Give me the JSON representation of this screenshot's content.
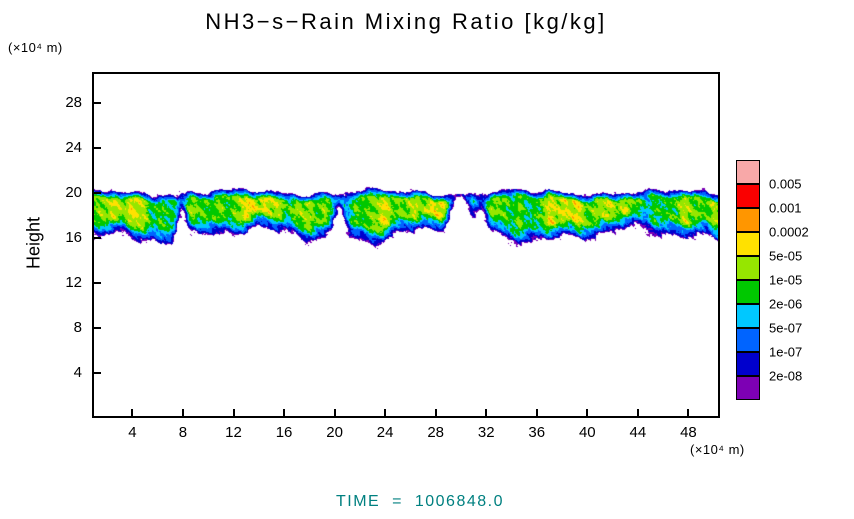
{
  "footer": {
    "time_label": "TIME  =  1006848.0"
  },
  "chart_data": {
    "type": "heatmap",
    "title": "NH3−s−Rain Mixing Ratio [kg/kg]",
    "ylabel": "Height",
    "y_axis_unit": "(×10⁴ m)",
    "x_axis_unit": "(×10⁴ m)",
    "x_ticks": [
      4,
      8,
      12,
      16,
      20,
      24,
      28,
      32,
      36,
      40,
      44,
      48
    ],
    "y_ticks": [
      4,
      8,
      12,
      16,
      20,
      24,
      28
    ],
    "xlim": [
      0.8,
      50.5
    ],
    "ylim": [
      0,
      30.75
    ],
    "grid": false,
    "legend_position": "right",
    "levels": [
      2e-08,
      1e-07,
      5e-07,
      2e-06,
      1e-05,
      5e-05,
      0.0002,
      0.001,
      0.005
    ],
    "level_labels_top_to_bottom": [
      "0.005",
      "0.001",
      "0.0002",
      "5e-05",
      "1e-05",
      "2e-06",
      "5e-07",
      "1e-07",
      "2e-08"
    ],
    "fill_colors_low_to_high": [
      "#7d00b4",
      "#0000cd",
      "#0064ff",
      "#00c8ff",
      "#00c800",
      "#96e600",
      "#ffe100",
      "#ff9600",
      "#fa0000",
      "#f8a8a8"
    ],
    "thresholds_log10": [
      -8.0,
      -7.7,
      -7.0,
      -6.3,
      -5.7,
      -5.0,
      -4.3,
      -3.7,
      -3.0,
      -2.3
    ],
    "band": {
      "description": "horizontal rain mixing-ratio band between heights ~15.5 and ~20.5 (x10^4 m), green/yellow-green cores ringed by cyan, blue, navy and purple fringes",
      "top_edge": {
        "base": 20.15,
        "waves": [
          [
            0.55,
            1.2,
            0.22
          ],
          [
            1.7,
            0.4,
            0.13
          ],
          [
            3.1,
            0.0,
            0.08
          ]
        ]
      },
      "bottom_edge": {
        "base": 16.05,
        "waves": [
          [
            0.42,
            2.1,
            0.5
          ],
          [
            1.1,
            4.2,
            0.32
          ],
          [
            2.3,
            1.0,
            0.22
          ]
        ]
      },
      "peak_log10": {
        "base": -4.9,
        "waves": [
          [
            0.5,
            0.7,
            0.45
          ],
          [
            1.3,
            2.6,
            0.35
          ],
          [
            2.9,
            1.3,
            0.25
          ],
          [
            5.3,
            0.2,
            0.18
          ]
        ],
        "clamp": [
          -6.25,
          -4.1
        ]
      },
      "floor_log10": -8.6,
      "edge_scale_top": 0.75,
      "edge_scale_bottom": 1.55,
      "shape_power": 0.8,
      "noise_waves": [
        [
          7.1,
          3.3,
          0.0,
          0.2
        ],
        [
          13.0,
          9.0,
          2.0,
          0.15
        ],
        [
          2.4,
          5.0,
          1.0,
          0.28
        ]
      ],
      "speckle_amp": 0.5,
      "outside_margin": 0.15,
      "pinches": [
        [
          7.9,
          0.45,
          0.5
        ],
        [
          20.4,
          0.55,
          0.55
        ],
        [
          29.9,
          0.9,
          0.85
        ],
        [
          31.6,
          0.5,
          0.5
        ]
      ]
    }
  }
}
